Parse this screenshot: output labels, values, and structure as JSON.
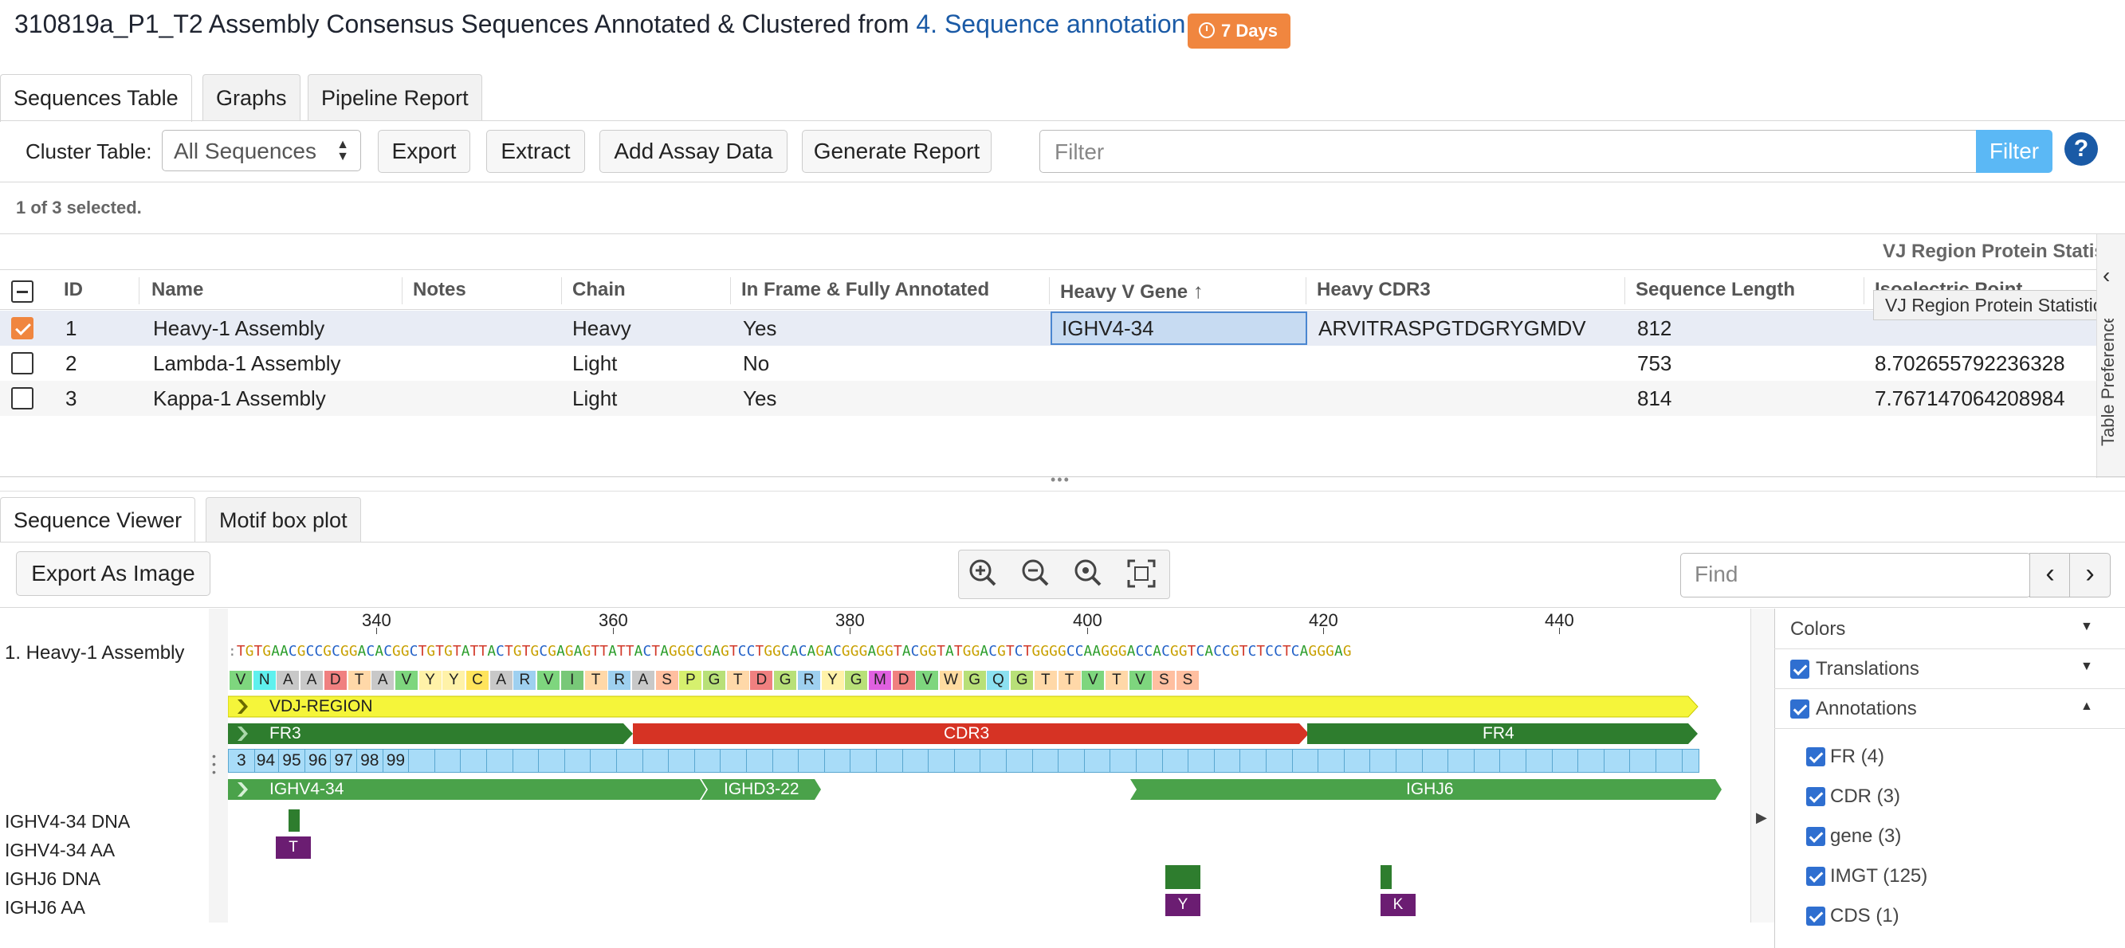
{
  "header": {
    "title_prefix": "310819a_P1_T2 Assembly Consensus Sequences Annotated & Clustered from",
    "title_link": "4. Sequence annotation",
    "badge": "7 Days"
  },
  "tabs": [
    "Sequences Table",
    "Graphs",
    "Pipeline Report"
  ],
  "toolbar": {
    "cluster_label": "Cluster Table:",
    "cluster_value": "All Sequences",
    "buttons": [
      "Export",
      "Extract",
      "Add Assay Data",
      "Generate Report"
    ],
    "filter_placeholder": "Filter",
    "filter_button": "Filter",
    "help": "?"
  },
  "selection_status": "1 of 3 selected.",
  "table": {
    "group_header": "VJ Region Protein Statistics",
    "tooltip": "VJ Region Protein Statistics",
    "side_tab": "Table Preferences",
    "columns": [
      "ID",
      "Name",
      "Notes",
      "Chain",
      "In Frame & Fully Annotated",
      "Heavy V Gene",
      "Heavy CDR3",
      "Sequence Length",
      "Isoelectric Point"
    ],
    "rows": [
      {
        "id": "1",
        "name": "Heavy-1 Assembly",
        "notes": "",
        "chain": "Heavy",
        "inframe": "Yes",
        "vgene": "IGHV4-34",
        "cdr3": "ARVITRASPGTDGRYGMDV",
        "length": "812",
        "pi": "",
        "selected": true
      },
      {
        "id": "2",
        "name": "Lambda-1 Assembly",
        "notes": "",
        "chain": "Light",
        "inframe": "No",
        "vgene": "",
        "cdr3": "",
        "length": "753",
        "pi": "8.702655792236328",
        "selected": false
      },
      {
        "id": "3",
        "name": "Kappa-1 Assembly",
        "notes": "",
        "chain": "Light",
        "inframe": "Yes",
        "vgene": "",
        "cdr3": "",
        "length": "814",
        "pi": "7.767147064208984",
        "selected": false
      }
    ]
  },
  "viewer_tabs": [
    "Sequence Viewer",
    "Motif box plot"
  ],
  "viewer": {
    "export_button": "Export As Image",
    "find_placeholder": "Find",
    "ruler": [
      "340",
      "360",
      "380",
      "400",
      "420",
      "440"
    ],
    "track_labels": [
      "1. Heavy-1 Assembly",
      "IGHV4-34 DNA",
      "IGHV4-34 AA",
      "IGHJ6 DNA",
      "IGHJ6 AA"
    ],
    "dna": ":TGTGAACGCCGCGGACACGGCTGTGTATTACTGTGCGAGAGTTATTACTAGGGCGAGTCCTGGCACAGACGGGAGGTACGGTATGGACGTCTGGGGCCAAGGGACCACGGTCACCGTCTCCTCAGGGAG",
    "translation": [
      "V",
      "N",
      "A",
      "A",
      "D",
      "T",
      "A",
      "V",
      "Y",
      "Y",
      "C",
      "A",
      "R",
      "V",
      "I",
      "T",
      "R",
      "A",
      "S",
      "P",
      "G",
      "T",
      "D",
      "G",
      "R",
      "Y",
      "G",
      "M",
      "D",
      "V",
      "W",
      "G",
      "Q",
      "G",
      "T",
      "T",
      "V",
      "T",
      "V",
      "S",
      "S"
    ],
    "annotations": {
      "vdj": "VDJ-REGION",
      "fr3": "FR3",
      "cdr3": "CDR3",
      "fr4": "FR4",
      "imgt": [
        "3",
        "94",
        "95",
        "96",
        "97",
        "98",
        "99"
      ],
      "ighv": "IGHV4-34",
      "ighd": "IGHD3-22",
      "ighj": "IGHJ6"
    },
    "motif_aa": [
      "T",
      "Y",
      "K"
    ]
  },
  "panel": {
    "colors": "Colors",
    "translations": "Translations",
    "annotations": "Annotations",
    "items": [
      "FR (4)",
      "CDR (3)",
      "gene (3)",
      "IMGT (125)",
      "CDS (1)"
    ]
  },
  "colors": {
    "accent": "#f0863f",
    "link": "#1a5aa6",
    "fr": "#2e7d2e",
    "cdr": "#d63324",
    "vdj": "#f5f53a",
    "imgt": "#a8dcf8",
    "motif_aa": "#6b1d72"
  }
}
